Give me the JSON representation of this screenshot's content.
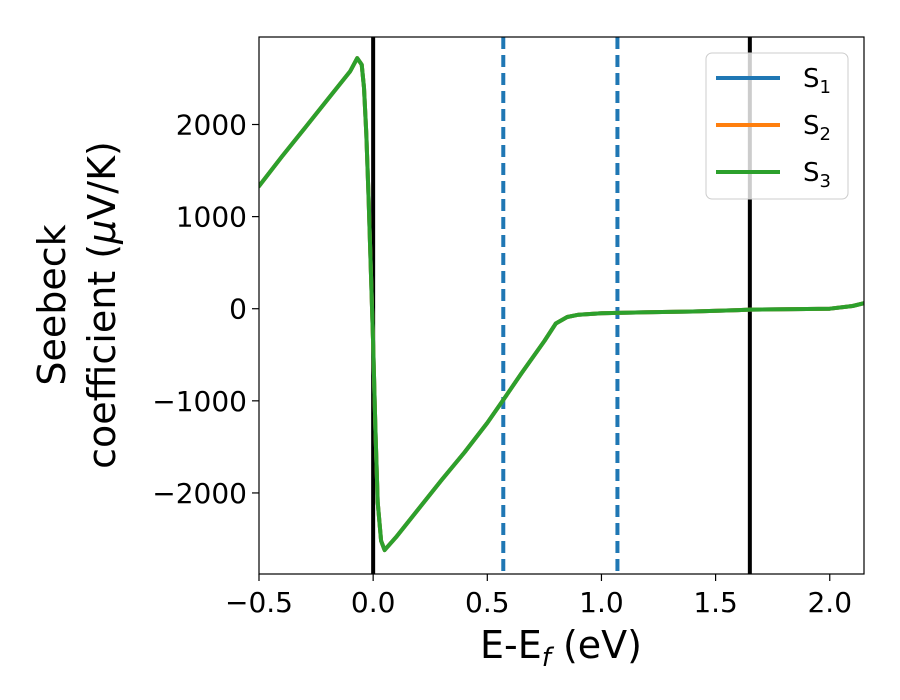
{
  "chart_data": {
    "type": "line",
    "xlabel_main": "E-E",
    "xlabel_sub": "f",
    "xlabel_unit": " (eV)",
    "ylabel_line1": "Seebeck",
    "ylabel_line2_text": "coefficient  (",
    "ylabel_line2_mu": "μ",
    "ylabel_line2_unit": "V/K)",
    "xlim": [
      -0.5,
      2.15
    ],
    "ylim": [
      -2880,
      2950
    ],
    "x_ticks": [
      -0.5,
      0.0,
      0.5,
      1.0,
      1.5,
      2.0
    ],
    "x_tick_labels": [
      "−0.5",
      "0.0",
      "0.5",
      "1.0",
      "1.5",
      "2.0"
    ],
    "y_ticks": [
      -2000,
      -1000,
      0,
      1000,
      2000
    ],
    "y_tick_labels": [
      "−2000",
      "−1000",
      "0",
      "1000",
      "2000"
    ],
    "grid": false,
    "legend_position": "top-right",
    "series": [
      {
        "name": "S",
        "subscript": "1",
        "color": "#1f77b4",
        "x": [
          -0.5,
          -0.4,
          -0.3,
          -0.2,
          -0.1,
          -0.07,
          -0.05,
          -0.04,
          -0.03,
          -0.02,
          -0.01,
          0.0,
          0.01,
          0.02,
          0.035,
          0.05,
          0.1,
          0.2,
          0.3,
          0.4,
          0.5,
          0.57,
          0.65,
          0.75,
          0.8,
          0.85,
          0.9,
          1.0,
          1.07,
          1.2,
          1.4,
          1.6,
          1.65,
          1.8,
          2.0,
          2.1,
          2.15
        ],
        "y": [
          1330,
          1650,
          1960,
          2270,
          2580,
          2720,
          2650,
          2400,
          1900,
          1200,
          400,
          -400,
          -1300,
          -2100,
          -2520,
          -2620,
          -2480,
          -2170,
          -1860,
          -1560,
          -1240,
          -990,
          -700,
          -350,
          -160,
          -90,
          -65,
          -50,
          -45,
          -38,
          -30,
          -15,
          -10,
          -5,
          0,
          30,
          60
        ]
      },
      {
        "name": "S",
        "subscript": "2",
        "color": "#ff7f0e",
        "x": [
          -0.5,
          -0.4,
          -0.3,
          -0.2,
          -0.1,
          -0.07,
          -0.05,
          -0.04,
          -0.03,
          -0.02,
          -0.01,
          0.0,
          0.01,
          0.02,
          0.035,
          0.05,
          0.1,
          0.2,
          0.3,
          0.4,
          0.5,
          0.57,
          0.65,
          0.75,
          0.8,
          0.85,
          0.9,
          1.0,
          1.07,
          1.2,
          1.4,
          1.6,
          1.65,
          1.8,
          2.0,
          2.1,
          2.15
        ],
        "y": [
          1330,
          1650,
          1960,
          2270,
          2580,
          2720,
          2650,
          2400,
          1900,
          1200,
          400,
          -400,
          -1300,
          -2100,
          -2520,
          -2620,
          -2480,
          -2170,
          -1860,
          -1560,
          -1240,
          -990,
          -700,
          -350,
          -160,
          -90,
          -65,
          -50,
          -45,
          -38,
          -30,
          -15,
          -10,
          -5,
          0,
          30,
          60
        ]
      },
      {
        "name": "S",
        "subscript": "3",
        "color": "#2ca02c",
        "x": [
          -0.5,
          -0.4,
          -0.3,
          -0.2,
          -0.1,
          -0.07,
          -0.05,
          -0.04,
          -0.03,
          -0.02,
          -0.01,
          0.0,
          0.01,
          0.02,
          0.035,
          0.05,
          0.1,
          0.2,
          0.3,
          0.4,
          0.5,
          0.57,
          0.65,
          0.75,
          0.8,
          0.85,
          0.9,
          1.0,
          1.07,
          1.2,
          1.4,
          1.6,
          1.65,
          1.8,
          2.0,
          2.1,
          2.15
        ],
        "y": [
          1330,
          1650,
          1960,
          2270,
          2580,
          2720,
          2650,
          2400,
          1900,
          1200,
          400,
          -400,
          -1300,
          -2100,
          -2520,
          -2620,
          -2480,
          -2170,
          -1860,
          -1560,
          -1240,
          -990,
          -700,
          -350,
          -160,
          -90,
          -65,
          -50,
          -45,
          -38,
          -30,
          -15,
          -10,
          -5,
          0,
          30,
          60
        ]
      }
    ],
    "vlines": [
      {
        "x": 0.0,
        "color": "#000000",
        "style": "solid"
      },
      {
        "x": 1.65,
        "color": "#000000",
        "style": "solid"
      },
      {
        "x": 0.57,
        "color": "#1f77b4",
        "style": "dashed"
      },
      {
        "x": 1.07,
        "color": "#1f77b4",
        "style": "dashed"
      }
    ]
  }
}
